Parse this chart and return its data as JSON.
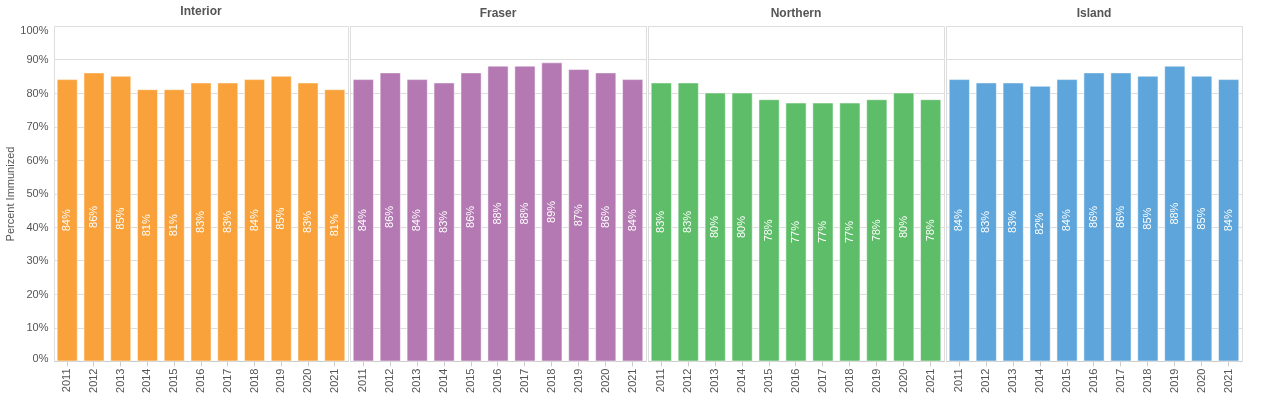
{
  "chart_data": [
    {
      "type": "bar",
      "title": "Interior",
      "ylabel": "Percent Immunized",
      "categories": [
        "2011",
        "2012",
        "2013",
        "2014",
        "2015",
        "2016",
        "2017",
        "2018",
        "2019",
        "2020",
        "2021"
      ],
      "values": [
        84,
        86,
        85,
        81,
        81,
        83,
        83,
        84,
        85,
        83,
        81
      ],
      "value_labels": [
        "84%",
        "86%",
        "85%",
        "81%",
        "81%",
        "83%",
        "83%",
        "84%",
        "85%",
        "83%",
        "81%"
      ],
      "color": "#f9a23b",
      "ylim": [
        0,
        100
      ],
      "yticks": [
        {
          "value": 0,
          "label": "0%"
        },
        {
          "value": 10,
          "label": "10%"
        },
        {
          "value": 20,
          "label": "20%"
        },
        {
          "value": 30,
          "label": "30%"
        },
        {
          "value": 40,
          "label": "40%"
        },
        {
          "value": 50,
          "label": "50%"
        },
        {
          "value": 60,
          "label": "60%"
        },
        {
          "value": 70,
          "label": "70%"
        },
        {
          "value": 80,
          "label": "80%"
        },
        {
          "value": 90,
          "label": "90%"
        },
        {
          "value": 100,
          "label": "100%"
        }
      ],
      "grid": "y"
    },
    {
      "type": "bar",
      "title": "Fraser",
      "categories": [
        "2011",
        "2012",
        "2013",
        "2014",
        "2015",
        "2016",
        "2017",
        "2018",
        "2019",
        "2020",
        "2021"
      ],
      "values": [
        84,
        86,
        84,
        83,
        86,
        88,
        88,
        89,
        87,
        86,
        84
      ],
      "value_labels": [
        "84%",
        "86%",
        "84%",
        "83%",
        "86%",
        "88%",
        "88%",
        "89%",
        "87%",
        "86%",
        "84%"
      ],
      "color": "#b479b3",
      "ylim": [
        0,
        100
      ],
      "yticks": [
        0,
        10,
        20,
        30,
        40,
        50,
        60,
        70,
        80,
        90,
        100
      ],
      "grid": "y",
      "tick_labels": "x"
    },
    {
      "type": "bar",
      "title": "Northern",
      "categories": [
        "2011",
        "2012",
        "2013",
        "2014",
        "2015",
        "2016",
        "2017",
        "2018",
        "2019",
        "2020",
        "2021"
      ],
      "values": [
        83,
        83,
        80,
        80,
        78,
        77,
        77,
        77,
        78,
        80,
        78
      ],
      "value_labels": [
        "83%",
        "83%",
        "80%",
        "80%",
        "78%",
        "77%",
        "77%",
        "77%",
        "78%",
        "80%",
        "78%"
      ],
      "color": "#5ebd68",
      "ylim": [
        0,
        100
      ],
      "yticks": [
        0,
        10,
        20,
        30,
        40,
        50,
        60,
        70,
        80,
        90,
        100
      ],
      "grid": "y",
      "tick_labels": "x"
    },
    {
      "type": "bar",
      "title": "Island",
      "categories": [
        "2011",
        "2012",
        "2013",
        "2014",
        "2015",
        "2016",
        "2017",
        "2018",
        "2019",
        "2020",
        "2021"
      ],
      "values": [
        84,
        83,
        83,
        82,
        84,
        86,
        86,
        85,
        88,
        85,
        84
      ],
      "value_labels": [
        "84%",
        "83%",
        "83%",
        "82%",
        "84%",
        "86%",
        "86%",
        "85%",
        "88%",
        "85%",
        "84%"
      ],
      "color": "#5da5da",
      "ylim": [
        0,
        100
      ],
      "yticks": [
        0,
        10,
        20,
        30,
        40,
        50,
        60,
        70,
        80,
        90,
        100
      ],
      "grid": "y",
      "tick_labels": "x"
    }
  ]
}
